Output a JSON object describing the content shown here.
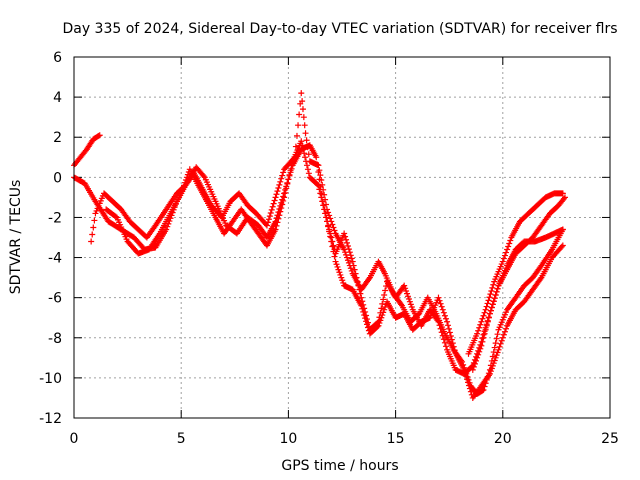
{
  "chart_data": {
    "type": "scatter",
    "title": "Day 335 of 2024, Sidereal Day-to-day VTEC variation (SDTVAR) for receiver flrs",
    "xlabel": "GPS time / hours",
    "ylabel": "SDTVAR / TECUs",
    "xlim": [
      0,
      25
    ],
    "ylim": [
      -12,
      6
    ],
    "xticks": [
      0,
      5,
      10,
      15,
      20,
      25
    ],
    "yticks": [
      -12,
      -10,
      -8,
      -6,
      -4,
      -2,
      0,
      2,
      4,
      6
    ],
    "grid": true,
    "marker": "+",
    "color": "#ff0000",
    "series": [
      {
        "name": "track-1",
        "points": [
          [
            0,
            0.6
          ],
          [
            0.3,
            1.0
          ],
          [
            0.6,
            1.4
          ],
          [
            0.9,
            1.9
          ],
          [
            1.2,
            2.1
          ]
        ]
      },
      {
        "name": "track-2",
        "points": [
          [
            0,
            0
          ],
          [
            0.5,
            -0.3
          ],
          [
            1,
            -1.2
          ],
          [
            1.6,
            -2.2
          ],
          [
            2.2,
            -2.6
          ],
          [
            2.8,
            -3.0
          ],
          [
            3.3,
            -3.6
          ],
          [
            3.8,
            -3.5
          ],
          [
            4.3,
            -2.6
          ],
          [
            4.8,
            -1.2
          ],
          [
            5.3,
            -0.2
          ],
          [
            5.7,
            0.5
          ],
          [
            6.1,
            0
          ],
          [
            6.6,
            -1.2
          ],
          [
            7.1,
            -2.4
          ],
          [
            7.6,
            -2.8
          ],
          [
            8.1,
            -2.0
          ],
          [
            8.6,
            -2.4
          ],
          [
            9.0,
            -3.0
          ],
          [
            9.4,
            -2.2
          ],
          [
            9.8,
            -0.8
          ],
          [
            10.2,
            0.6
          ],
          [
            10.6,
            1.4
          ],
          [
            11.0,
            1.6
          ],
          [
            11.3,
            1.0
          ],
          [
            11.6,
            -1.2
          ],
          [
            11.9,
            -2.6
          ],
          [
            12.2,
            -3.8
          ],
          [
            12.6,
            -2.8
          ],
          [
            13.0,
            -4.2
          ],
          [
            13.4,
            -6.0
          ],
          [
            13.8,
            -7.6
          ],
          [
            14.2,
            -7.2
          ],
          [
            14.6,
            -5.2
          ],
          [
            15.0,
            -6.0
          ],
          [
            15.4,
            -5.4
          ],
          [
            15.8,
            -6.6
          ],
          [
            16.2,
            -7.4
          ],
          [
            16.6,
            -6.6
          ],
          [
            17.0,
            -7.2
          ],
          [
            17.4,
            -8.6
          ],
          [
            17.8,
            -9.6
          ],
          [
            18.2,
            -9.8
          ],
          [
            18.6,
            -9.4
          ],
          [
            19.0,
            -8.2
          ],
          [
            19.4,
            -6.8
          ],
          [
            19.8,
            -5.4
          ],
          [
            20.2,
            -4.4
          ],
          [
            20.6,
            -3.6
          ],
          [
            21.0,
            -3.2
          ],
          [
            21.5,
            -3.2
          ],
          [
            22.0,
            -3.0
          ],
          [
            22.8,
            -2.6
          ]
        ]
      },
      {
        "name": "track-3",
        "points": [
          [
            0.8,
            -3.2
          ],
          [
            1.0,
            -1.8
          ],
          [
            1.4,
            -0.8
          ],
          [
            1.8,
            -1.2
          ],
          [
            2.2,
            -1.6
          ],
          [
            2.6,
            -2.2
          ],
          [
            3.0,
            -2.6
          ],
          [
            3.4,
            -3.0
          ],
          [
            3.8,
            -2.4
          ],
          [
            4.3,
            -1.6
          ],
          [
            4.8,
            -0.8
          ],
          [
            5.2,
            -0.4
          ],
          [
            5.6,
            0.2
          ],
          [
            6.0,
            -0.6
          ],
          [
            6.4,
            -1.4
          ],
          [
            6.9,
            -2.0
          ],
          [
            7.3,
            -1.2
          ],
          [
            7.7,
            -0.8
          ],
          [
            8.1,
            -1.4
          ],
          [
            8.5,
            -1.8
          ],
          [
            9.0,
            -2.4
          ],
          [
            9.4,
            -1.0
          ],
          [
            9.8,
            0.4
          ],
          [
            10.3,
            1.0
          ],
          [
            10.6,
            4.2
          ],
          [
            10.8,
            2.2
          ],
          [
            11.0,
            0.8
          ],
          [
            11.4,
            0.6
          ],
          [
            11.8,
            -1.6
          ],
          [
            12.2,
            -2.8
          ],
          [
            12.6,
            -3.6
          ],
          [
            13.0,
            -4.8
          ],
          [
            13.4,
            -5.6
          ],
          [
            13.8,
            -5.0
          ],
          [
            14.2,
            -4.2
          ],
          [
            14.5,
            -4.8
          ],
          [
            14.9,
            -5.8
          ],
          [
            15.3,
            -6.4
          ],
          [
            15.7,
            -7.2
          ],
          [
            16.1,
            -6.8
          ],
          [
            16.5,
            -6.0
          ],
          [
            16.9,
            -6.8
          ],
          [
            17.3,
            -7.8
          ],
          [
            17.7,
            -8.6
          ],
          [
            18.1,
            -9.2
          ],
          [
            18.5,
            -10.4
          ],
          [
            18.8,
            -10.8
          ],
          [
            19.1,
            -10.6
          ],
          [
            19.4,
            -9.6
          ],
          [
            19.8,
            -7.6
          ],
          [
            20.2,
            -6.6
          ],
          [
            20.6,
            -6.0
          ],
          [
            21.0,
            -5.4
          ],
          [
            21.4,
            -5.0
          ],
          [
            21.8,
            -4.4
          ],
          [
            22.3,
            -3.6
          ],
          [
            22.8,
            -2.6
          ]
        ]
      },
      {
        "name": "track-4",
        "points": [
          [
            1.5,
            -1.6
          ],
          [
            2.0,
            -2.0
          ],
          [
            2.5,
            -3.2
          ],
          [
            3.0,
            -3.8
          ],
          [
            3.5,
            -3.6
          ],
          [
            4.0,
            -2.8
          ],
          [
            4.5,
            -1.8
          ],
          [
            5.0,
            -0.8
          ],
          [
            5.4,
            0.4
          ],
          [
            5.8,
            -0.4
          ],
          [
            6.2,
            -1.2
          ],
          [
            6.6,
            -2.0
          ],
          [
            7.0,
            -2.8
          ],
          [
            7.4,
            -2.2
          ],
          [
            7.8,
            -1.6
          ],
          [
            8.2,
            -2.2
          ],
          [
            8.6,
            -2.8
          ],
          [
            9.0,
            -3.4
          ],
          [
            9.4,
            -2.6
          ],
          [
            9.8,
            -1.0
          ],
          [
            10.2,
            0.8
          ],
          [
            10.6,
            1.8
          ],
          [
            11.0,
            0.0
          ],
          [
            11.4,
            -0.4
          ],
          [
            11.8,
            -2.2
          ],
          [
            12.2,
            -4.2
          ],
          [
            12.6,
            -5.4
          ],
          [
            13.0,
            -5.6
          ],
          [
            13.4,
            -6.4
          ],
          [
            13.8,
            -7.8
          ],
          [
            14.2,
            -7.4
          ],
          [
            14.6,
            -6.2
          ],
          [
            15.0,
            -7.0
          ],
          [
            15.4,
            -6.8
          ],
          [
            15.8,
            -7.6
          ],
          [
            16.2,
            -7.2
          ],
          [
            16.6,
            -7.0
          ],
          [
            17.0,
            -6.0
          ],
          [
            17.4,
            -7.2
          ],
          [
            17.8,
            -8.8
          ],
          [
            18.2,
            -9.6
          ],
          [
            18.6,
            -11.0
          ],
          [
            19.0,
            -10.4
          ],
          [
            19.4,
            -9.8
          ],
          [
            19.8,
            -8.6
          ],
          [
            20.2,
            -7.4
          ],
          [
            20.6,
            -6.6
          ],
          [
            21.0,
            -6.2
          ],
          [
            21.4,
            -5.6
          ],
          [
            21.8,
            -5.0
          ],
          [
            22.3,
            -4.0
          ],
          [
            22.8,
            -3.4
          ]
        ]
      },
      {
        "name": "track-5",
        "points": [
          [
            18.4,
            -8.8
          ],
          [
            18.8,
            -7.8
          ],
          [
            19.2,
            -6.6
          ],
          [
            19.6,
            -5.2
          ],
          [
            20.0,
            -4.2
          ],
          [
            20.4,
            -3.0
          ],
          [
            20.8,
            -2.2
          ],
          [
            21.2,
            -1.8
          ],
          [
            21.6,
            -1.4
          ],
          [
            22.0,
            -1.0
          ],
          [
            22.4,
            -0.8
          ],
          [
            22.8,
            -0.8
          ]
        ]
      },
      {
        "name": "track-6",
        "points": [
          [
            18.6,
            -9.6
          ],
          [
            19.0,
            -8.4
          ],
          [
            19.4,
            -6.8
          ],
          [
            19.8,
            -5.4
          ],
          [
            20.2,
            -4.6
          ],
          [
            20.6,
            -3.8
          ],
          [
            21.0,
            -3.4
          ],
          [
            21.4,
            -3.0
          ],
          [
            21.8,
            -2.4
          ],
          [
            22.2,
            -1.8
          ],
          [
            22.6,
            -1.4
          ],
          [
            22.9,
            -1.0
          ]
        ]
      }
    ]
  }
}
